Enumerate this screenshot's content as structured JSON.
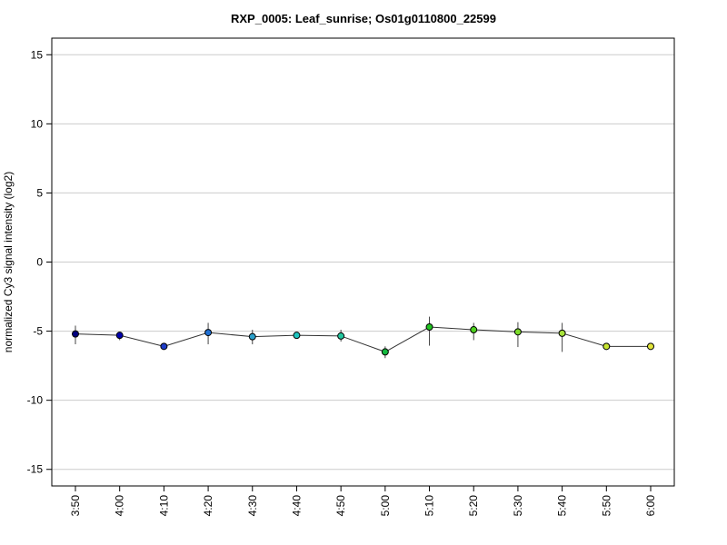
{
  "chart_data": {
    "type": "line",
    "title": "RXP_0005: Leaf_sunrise; Os01g0110800_22599",
    "xlabel": "",
    "ylabel": "normalized Cy3 signal intensity (log2)",
    "categories": [
      "3:50",
      "4:00",
      "4:10",
      "4:20",
      "4:30",
      "4:40",
      "4:50",
      "5:00",
      "5:10",
      "5:20",
      "5:30",
      "5:40",
      "5:50",
      "6:00"
    ],
    "values": [
      -5.2,
      -5.3,
      -6.1,
      -5.1,
      -5.4,
      -5.3,
      -5.35,
      -6.5,
      -4.7,
      -4.9,
      -5.05,
      -5.15,
      -6.1,
      -6.1
    ],
    "error_low": [
      -5.95,
      -5.65,
      -6.25,
      -5.95,
      -5.95,
      -5.4,
      -5.75,
      -6.95,
      -6.05,
      -5.65,
      -6.15,
      -6.5,
      -6.1,
      -6.1
    ],
    "error_high": [
      -4.6,
      -5.05,
      -5.95,
      -4.4,
      -4.9,
      -5.2,
      -4.9,
      -6.1,
      -3.95,
      -4.4,
      -4.35,
      -4.4,
      -6.1,
      -6.1
    ],
    "point_colors": [
      "#00007f",
      "#0000ae",
      "#1e3cc8",
      "#1f6fd3",
      "#2ba0cb",
      "#1ec5c0",
      "#22c79f",
      "#12b83d",
      "#20c421",
      "#4ed11f",
      "#7ddc2a",
      "#a7e23a",
      "#c8e632",
      "#e1e43a"
    ],
    "y_ticks": [
      -15,
      -10,
      -5,
      0,
      5,
      10,
      15
    ],
    "ylim": [
      -16.2,
      16.2
    ],
    "grid": true,
    "line_color": "#333333",
    "grid_color": "#cccccc"
  }
}
